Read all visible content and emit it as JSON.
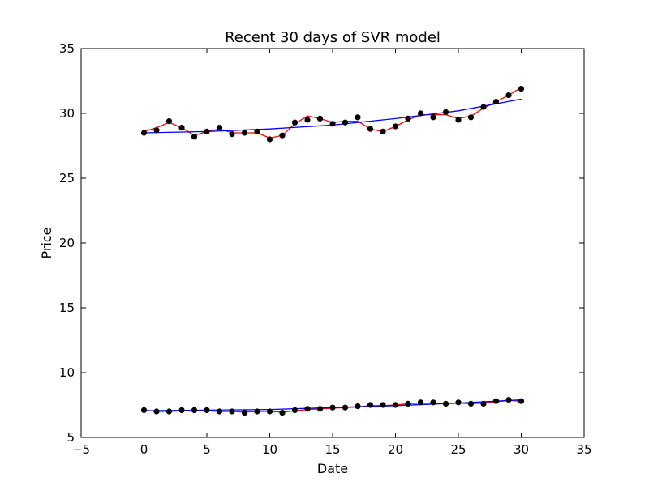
{
  "chart_data": {
    "type": "scatter",
    "title": "Recent 30 days of SVR model",
    "xlabel": "Date",
    "ylabel": "Price",
    "xlim": [
      -5,
      35
    ],
    "ylim": [
      5,
      35
    ],
    "xticks": [
      -5,
      0,
      5,
      10,
      15,
      20,
      25,
      30,
      35
    ],
    "yticks": [
      5,
      10,
      15,
      20,
      25,
      30,
      35
    ],
    "grid": false,
    "legend": "none",
    "colors": {
      "points": "#000000",
      "rbf_line": "#ff0000",
      "trend_line": "#0000ff"
    },
    "series": [
      {
        "kind": "points",
        "x": [
          0,
          1,
          2,
          3,
          4,
          5,
          6,
          7,
          8,
          9,
          10,
          11,
          12,
          13,
          14,
          15,
          16,
          17,
          18,
          19,
          20,
          21,
          22,
          23,
          24,
          25,
          26,
          27,
          28,
          29,
          30
        ],
        "values": [
          28.5,
          28.7,
          29.4,
          28.9,
          28.2,
          28.6,
          28.9,
          28.4,
          28.5,
          28.6,
          28.0,
          28.3,
          29.3,
          29.5,
          29.6,
          29.2,
          29.3,
          29.7,
          28.8,
          28.6,
          29.0,
          29.6,
          30.0,
          29.7,
          30.1,
          29.5,
          29.7,
          30.5,
          30.9,
          31.4,
          31.9
        ]
      },
      {
        "kind": "line",
        "color_key": "rbf_line",
        "x": [
          0,
          1,
          2,
          3,
          4,
          5,
          6,
          7,
          8,
          9,
          10,
          11,
          12,
          13,
          14,
          15,
          16,
          17,
          18,
          19,
          20,
          21,
          22,
          23,
          24,
          25,
          26,
          27,
          28,
          29,
          30
        ],
        "values": [
          28.6,
          28.9,
          29.3,
          28.9,
          28.3,
          28.6,
          28.8,
          28.5,
          28.5,
          28.5,
          28.1,
          28.3,
          29.2,
          29.8,
          29.6,
          29.3,
          29.4,
          29.4,
          28.8,
          28.6,
          29.0,
          29.5,
          29.9,
          29.9,
          29.9,
          29.6,
          29.8,
          30.4,
          30.9,
          31.4,
          32.0
        ]
      },
      {
        "kind": "line",
        "color_key": "trend_line",
        "x": [
          0,
          5,
          10,
          15,
          20,
          25,
          30
        ],
        "values": [
          28.5,
          28.6,
          28.8,
          29.1,
          29.6,
          30.2,
          31.1
        ]
      },
      {
        "kind": "points",
        "x": [
          0,
          1,
          2,
          3,
          4,
          5,
          6,
          7,
          8,
          9,
          10,
          11,
          12,
          13,
          14,
          15,
          16,
          17,
          18,
          19,
          20,
          21,
          22,
          23,
          24,
          25,
          26,
          27,
          28,
          29,
          30
        ],
        "values": [
          7.1,
          7.0,
          7.0,
          7.1,
          7.1,
          7.1,
          7.0,
          7.0,
          6.9,
          7.0,
          7.0,
          6.9,
          7.1,
          7.2,
          7.2,
          7.3,
          7.3,
          7.4,
          7.5,
          7.5,
          7.5,
          7.6,
          7.7,
          7.7,
          7.6,
          7.7,
          7.6,
          7.6,
          7.8,
          7.9,
          7.8
        ]
      },
      {
        "kind": "line",
        "color_key": "rbf_line",
        "x": [
          0,
          1,
          2,
          3,
          4,
          5,
          6,
          7,
          8,
          9,
          10,
          11,
          12,
          13,
          14,
          15,
          16,
          17,
          18,
          19,
          20,
          21,
          22,
          23,
          24,
          25,
          26,
          27,
          28,
          29,
          30
        ],
        "values": [
          7.1,
          7.0,
          7.0,
          7.05,
          7.05,
          7.05,
          7.0,
          7.0,
          6.95,
          7.0,
          7.0,
          6.95,
          7.05,
          7.15,
          7.2,
          7.25,
          7.3,
          7.35,
          7.45,
          7.45,
          7.5,
          7.6,
          7.65,
          7.65,
          7.6,
          7.65,
          7.6,
          7.65,
          7.75,
          7.85,
          7.8
        ]
      },
      {
        "kind": "line",
        "color_key": "trend_line",
        "x": [
          0,
          5,
          10,
          15,
          20,
          25,
          30
        ],
        "values": [
          7.05,
          7.1,
          7.15,
          7.3,
          7.45,
          7.65,
          7.9
        ]
      }
    ]
  }
}
